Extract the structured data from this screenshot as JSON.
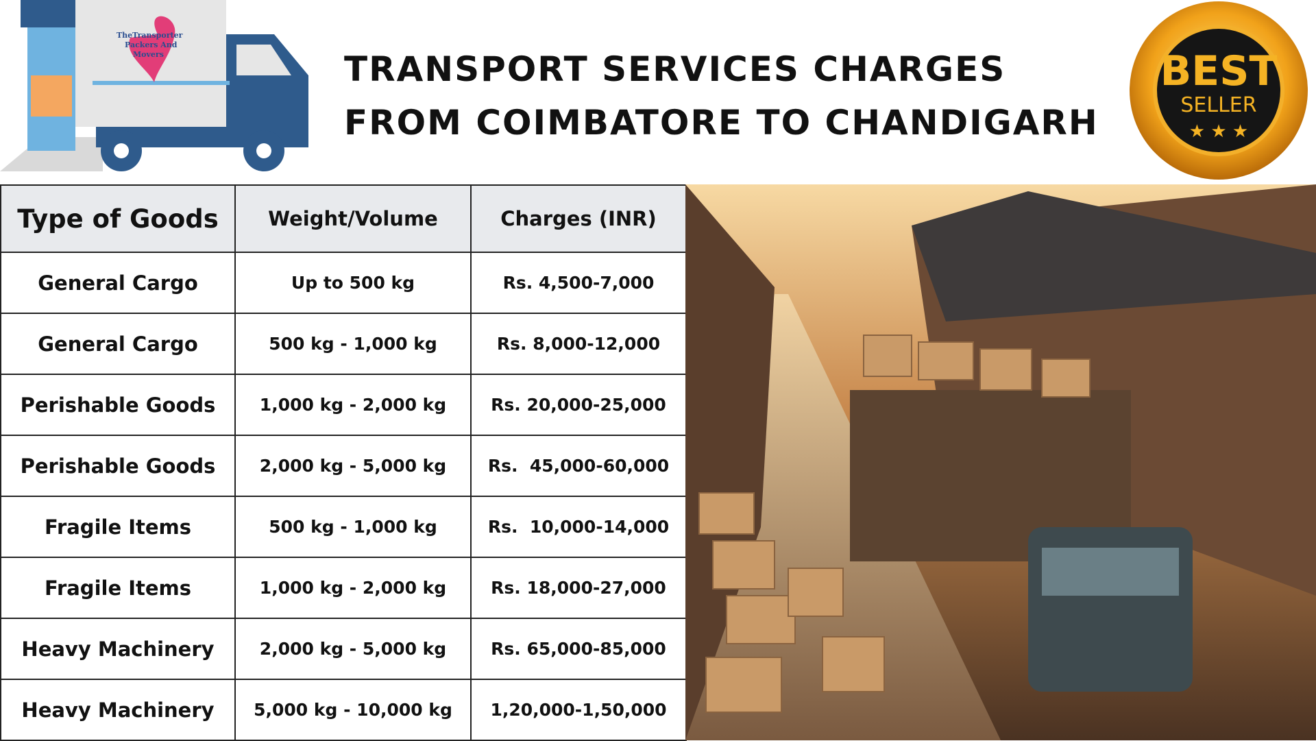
{
  "header": {
    "title_lines": [
      "TRANSPORT SERVICES CHARGES",
      "FROM COIMBATORE TO CHANDIGARH"
    ],
    "logo_lines": [
      "TheTransporter",
      "Packers And",
      "Movers"
    ],
    "badge": {
      "top": "BEST",
      "bottom": "SELLER"
    }
  },
  "table": {
    "columns": [
      "Type of Goods",
      "Weight/Volume",
      "Charges (INR)"
    ],
    "rows": [
      [
        "General Cargo",
        "Up to 500 kg",
        "Rs. 4,500-7,000"
      ],
      [
        "General Cargo",
        "500 kg - 1,000 kg",
        "Rs. 8,000-12,000"
      ],
      [
        "Perishable Goods",
        "1,000 kg - 2,000 kg",
        "Rs. 20,000-25,000"
      ],
      [
        "Perishable Goods",
        "2,000 kg - 5,000 kg",
        "Rs.  45,000-60,000"
      ],
      [
        "Fragile Items",
        "500 kg - 1,000 kg",
        "Rs.  10,000-14,000"
      ],
      [
        "Fragile Items",
        "1,000 kg - 2,000 kg",
        "Rs. 18,000-27,000"
      ],
      [
        "Heavy Machinery",
        "2,000 kg - 5,000 kg",
        "Rs. 65,000-85,000"
      ],
      [
        "Heavy Machinery",
        "5,000 kg - 10,000 kg",
        "1,20,000-1,50,000"
      ]
    ]
  }
}
